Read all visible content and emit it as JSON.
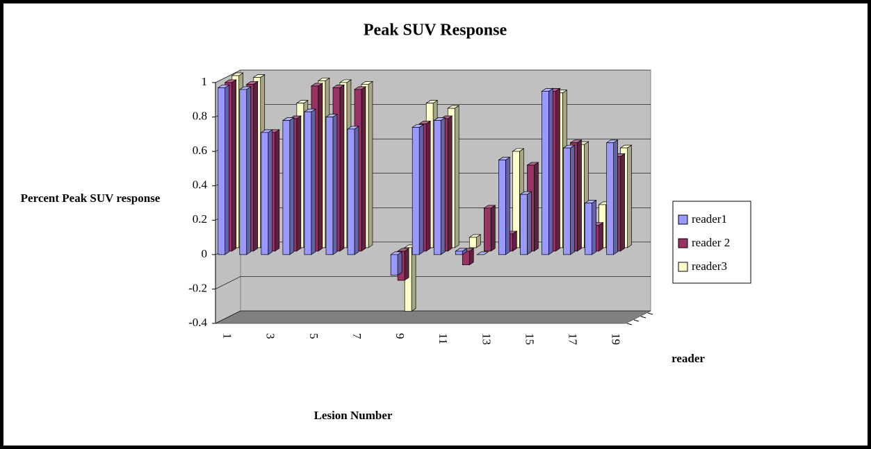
{
  "chart_data": {
    "type": "bar3d",
    "title": "Peak SUV Response",
    "x_label": "Lesion Number",
    "y_label": "Percent Peak SUV response",
    "series_axis_label": "reader",
    "categories": [
      "1",
      null,
      "3",
      null,
      "5",
      null,
      "7",
      null,
      "9",
      null,
      "11",
      null,
      "13",
      null,
      "15",
      null,
      "17",
      null,
      "19"
    ],
    "series": [
      {
        "name": "reader1",
        "color": "#9999ff",
        "values": [
          0.97,
          0.96,
          0.71,
          0.78,
          0.83,
          0.8,
          0.73,
          null,
          -0.12,
          0.74,
          0.78,
          0.02,
          0.0,
          0.55,
          0.35,
          0.95,
          0.62,
          0.3,
          0.65
        ]
      },
      {
        "name": "reader 2",
        "color": "#993366",
        "values": [
          0.98,
          0.97,
          0.69,
          0.77,
          0.96,
          0.95,
          0.94,
          null,
          -0.17,
          0.74,
          0.77,
          -0.08,
          0.25,
          0.1,
          0.5,
          0.93,
          0.63,
          0.15,
          0.55
        ]
      },
      {
        "name": "reader3",
        "color": "#ffffcc",
        "values": [
          1.0,
          0.99,
          null,
          0.84,
          0.97,
          0.96,
          0.95,
          null,
          -0.37,
          0.84,
          0.81,
          0.06,
          null,
          0.56,
          null,
          0.9,
          0.6,
          0.25,
          0.58
        ]
      }
    ],
    "ylim": [
      -0.4,
      1
    ],
    "yticks": [
      -0.4,
      -0.2,
      0,
      0.2,
      0.4,
      0.6,
      0.8,
      1
    ],
    "grid": true,
    "legend": "right"
  }
}
